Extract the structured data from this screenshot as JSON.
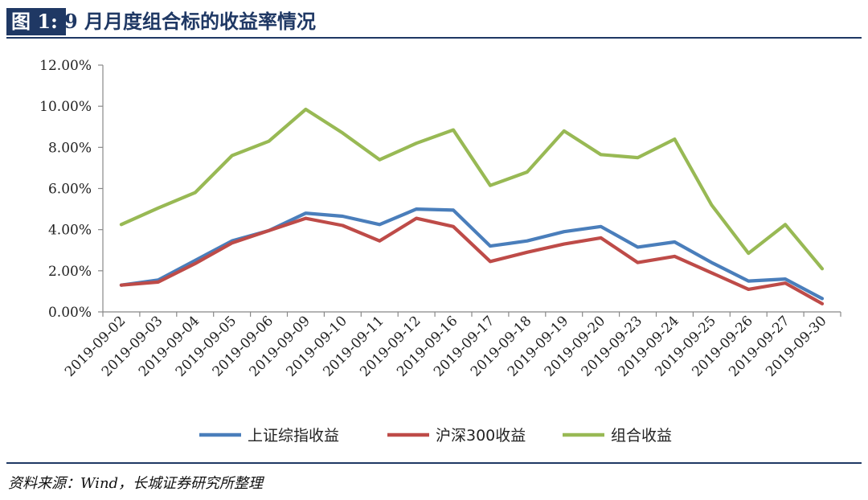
{
  "figure": {
    "label": "图 1:",
    "title": "9 月月度组合标的收益率情况"
  },
  "source_note": "资料来源：Wind，长城证券研究所整理",
  "chart_data": {
    "type": "line",
    "title": "",
    "xlabel": "",
    "ylabel": "",
    "ylim": [
      0,
      12
    ],
    "y_unit": "%",
    "y_ticks": [
      "0.00%",
      "2.00%",
      "4.00%",
      "6.00%",
      "8.00%",
      "10.00%",
      "12.00%"
    ],
    "grid": false,
    "legend_position": "bottom",
    "categories": [
      "2019-09-02",
      "2019-09-03",
      "2019-09-04",
      "2019-09-05",
      "2019-09-06",
      "2019-09-09",
      "2019-09-10",
      "2019-09-11",
      "2019-09-12",
      "2019-09-16",
      "2019-09-17",
      "2019-09-18",
      "2019-09-19",
      "2019-09-20",
      "2019-09-23",
      "2019-09-24",
      "2019-09-25",
      "2019-09-26",
      "2019-09-27",
      "2019-09-30"
    ],
    "series": [
      {
        "name": "上证综指收益",
        "color": "#4a7ebb",
        "values": [
          1.3,
          1.55,
          2.5,
          3.45,
          3.95,
          4.8,
          4.65,
          4.25,
          5.0,
          4.95,
          3.2,
          3.45,
          3.9,
          4.15,
          3.15,
          3.4,
          2.4,
          1.5,
          1.6,
          0.65
        ]
      },
      {
        "name": "沪深300收益",
        "color": "#be4b48",
        "values": [
          1.3,
          1.45,
          2.35,
          3.35,
          3.95,
          4.55,
          4.2,
          3.45,
          4.55,
          4.15,
          2.45,
          2.9,
          3.3,
          3.6,
          2.4,
          2.7,
          1.9,
          1.1,
          1.4,
          0.4
        ]
      },
      {
        "name": "组合收益",
        "color": "#98b954",
        "values": [
          4.25,
          5.05,
          5.8,
          7.6,
          8.3,
          9.85,
          8.7,
          7.4,
          8.2,
          8.85,
          6.15,
          6.8,
          8.8,
          7.65,
          7.5,
          8.4,
          5.2,
          2.85,
          4.25,
          2.1
        ]
      }
    ]
  }
}
